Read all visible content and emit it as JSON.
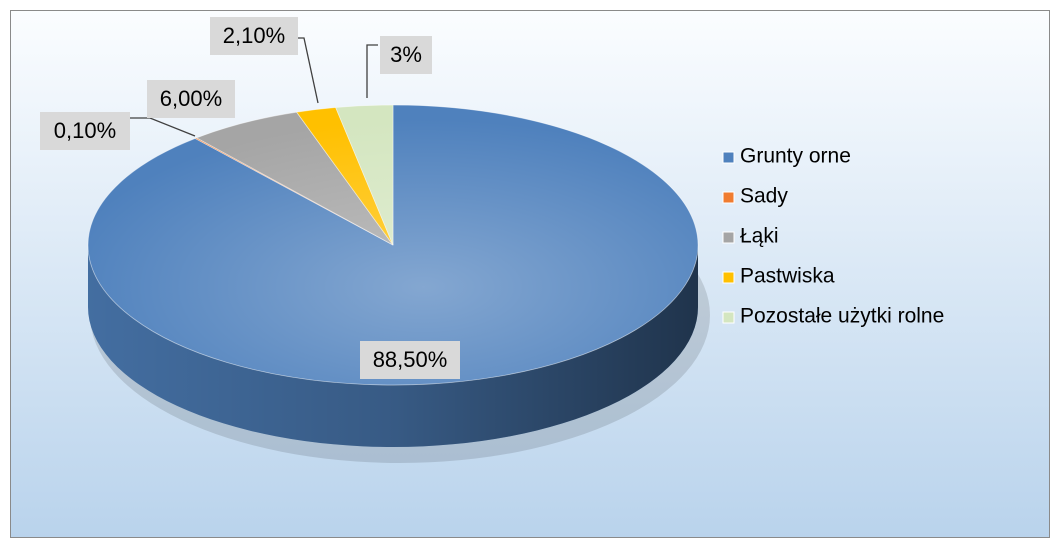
{
  "chart_data": {
    "type": "pie",
    "categories": [
      "Grunty orne",
      "Sady",
      "Łąki",
      "Pastwiska",
      "Pozostałe użytki rolne"
    ],
    "values": [
      88.5,
      0.1,
      6,
      2.1,
      3
    ],
    "value_labels": [
      "88,50%",
      "0,10%",
      "6,00%",
      "2,10%",
      "3%"
    ],
    "colors": [
      "#4f81bd",
      "#f07c30",
      "#a5a5a5",
      "#ffc000",
      "#d4e6c0"
    ],
    "legend": "right"
  }
}
